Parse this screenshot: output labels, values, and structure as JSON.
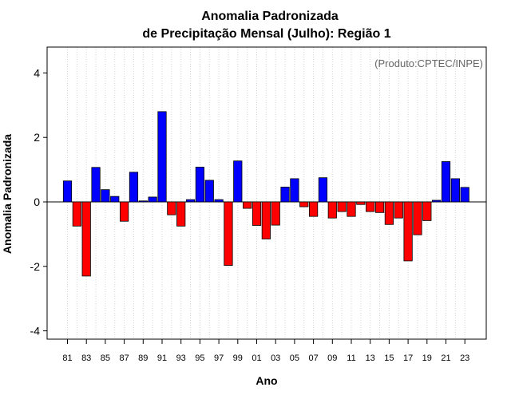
{
  "chart_data": {
    "type": "bar",
    "title_line1": "Anomalia Padronizada",
    "title_line2": "de Precipitação Mensal (Julho): Região 1",
    "xlabel": "Ano",
    "ylabel": "Anomalia Padronizada",
    "credit": "(Produto:CPTEC/INPE)",
    "ylim": [
      -4.3,
      4.8
    ],
    "yticks": [
      -4,
      -2,
      0,
      2,
      4
    ],
    "yticklabels": [
      "-4",
      "-2",
      "0",
      "2",
      "4"
    ],
    "grid": "vertical dotted",
    "categories": [
      "81",
      "82",
      "83",
      "84",
      "85",
      "86",
      "87",
      "88",
      "89",
      "90",
      "91",
      "92",
      "93",
      "94",
      "95",
      "96",
      "97",
      "98",
      "99",
      "00",
      "01",
      "02",
      "03",
      "04",
      "05",
      "06",
      "07",
      "08",
      "09",
      "10",
      "11",
      "12",
      "13",
      "14",
      "15",
      "16",
      "17",
      "18",
      "19",
      "20",
      "21",
      "22",
      "23"
    ],
    "xticklabels": [
      "81",
      "83",
      "85",
      "87",
      "89",
      "91",
      "93",
      "95",
      "97",
      "99",
      "01",
      "03",
      "05",
      "07",
      "09",
      "11",
      "13",
      "15",
      "17",
      "19",
      "21",
      "23"
    ],
    "values": [
      0.65,
      -0.75,
      -2.3,
      1.07,
      0.38,
      0.17,
      -0.6,
      0.92,
      0.03,
      0.15,
      2.8,
      -0.4,
      -0.75,
      0.07,
      1.08,
      0.67,
      0.07,
      -1.97,
      1.27,
      -0.2,
      -0.73,
      -1.15,
      -0.72,
      0.46,
      0.72,
      -0.15,
      -0.45,
      0.75,
      -0.5,
      -0.3,
      -0.45,
      -0.08,
      -0.3,
      -0.33,
      -0.7,
      -0.5,
      -1.83,
      -1.02,
      -0.58,
      0.05,
      1.25,
      0.72,
      0.45
    ],
    "colors": {
      "positive": "#0000ff",
      "negative": "#ff0000",
      "outline": "#000000",
      "grid": "#d3d3d3"
    }
  }
}
